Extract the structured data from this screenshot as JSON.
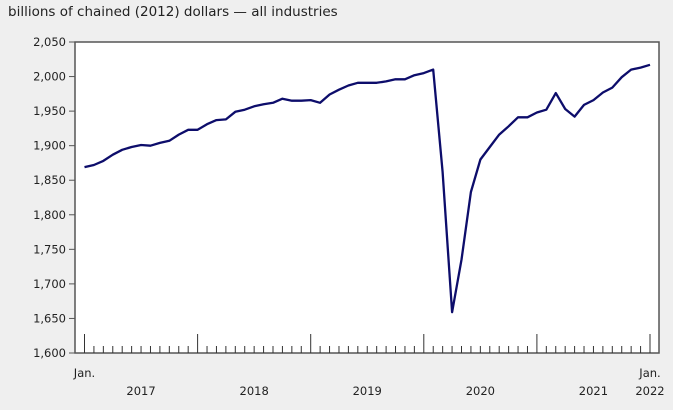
{
  "chart_data": {
    "type": "line",
    "title": "billions of chained (2012) dollars — all industries",
    "xlabel": "",
    "ylabel": "",
    "ylim": [
      1600,
      2050
    ],
    "yticks": [
      1600,
      1650,
      1700,
      1750,
      1800,
      1850,
      1900,
      1950,
      2000,
      2050
    ],
    "ytick_labels": [
      "1,600",
      "1,650",
      "1,700",
      "1,750",
      "1,800",
      "1,850",
      "1,900",
      "1,950",
      "2,000",
      "2,050"
    ],
    "x_start": "2017-01",
    "x_end": "2022-01",
    "x_frequency": "monthly",
    "x_month_labels": [
      {
        "month_index": 0,
        "label": "Jan."
      },
      {
        "month_index": 60,
        "label": "Jan."
      }
    ],
    "x_year_labels": [
      "2017",
      "2018",
      "2019",
      "2020",
      "2021",
      "2022"
    ],
    "grid": false,
    "line_color": "#0d0d6b",
    "series": [
      {
        "values": [
          1869,
          1872,
          1878,
          1887,
          1894,
          1898,
          1901,
          1900,
          1904,
          1907,
          1916,
          1923,
          1923,
          1931,
          1937,
          1938,
          1949,
          1952,
          1957,
          1960,
          1962,
          1968,
          1965,
          1965,
          1966,
          1962,
          1974,
          1981,
          1987,
          1991,
          1991,
          1991,
          1993,
          1996,
          1996,
          2002,
          2005,
          2010,
          1862,
          1659,
          1735,
          1833,
          1880,
          1898,
          1916,
          1928,
          1941,
          1941,
          1948,
          1952,
          1976,
          1953,
          1942,
          1959,
          1966,
          1977,
          1984,
          1999,
          2010,
          2013,
          2017
        ]
      }
    ]
  }
}
